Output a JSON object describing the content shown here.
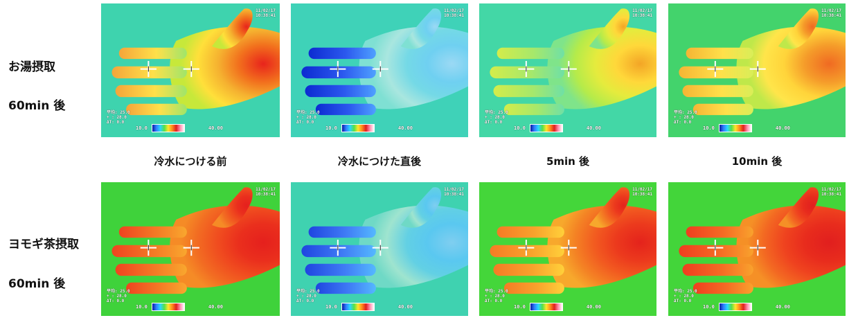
{
  "row_labels": [
    {
      "line1": "お湯摂取",
      "line2": "60min 後"
    },
    {
      "line1": "ヨモギ茶摂取",
      "line2": "60min 後"
    }
  ],
  "captions": [
    "冷水につける前",
    "冷水につけた直後",
    "5min 後",
    "10min 後"
  ],
  "scale": {
    "low": "10.0",
    "high": "40.00"
  },
  "overlay": {
    "timestamp": "11/02/17\n10:38:41",
    "readout": "平均: 25.0\n+ : 28.0\nΔT: 0.0"
  },
  "colors": {
    "background_cold": "#3fd0a0",
    "background_row2": "#3fd23b"
  }
}
